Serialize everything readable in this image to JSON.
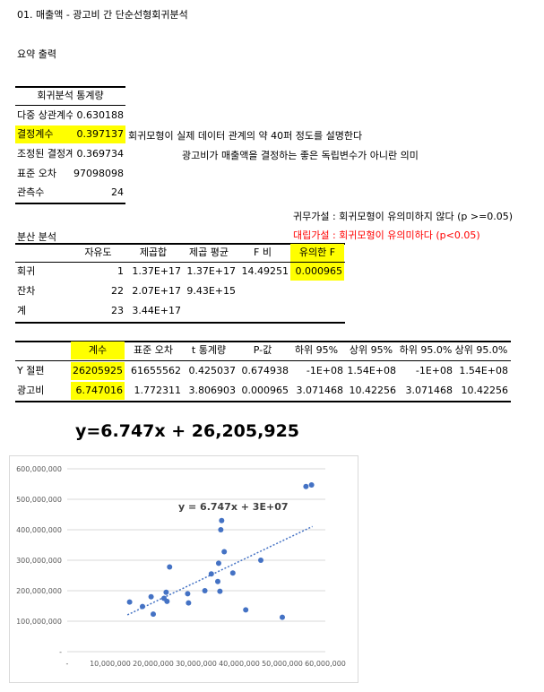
{
  "title": "01. 매출액 - 광고비 간 단순선형회귀분석",
  "summary_output": "요약 출력",
  "regression_stats": {
    "header": "회귀분석 통계량",
    "rows": [
      {
        "label": "다중 상관계수",
        "value": "0.630188"
      },
      {
        "label": "결정계수",
        "value": "0.397137"
      },
      {
        "label": "조정된 결정계수",
        "value": "0.369734"
      },
      {
        "label": "표준 오차",
        "value": "97098098"
      },
      {
        "label": "관측수",
        "value": "24"
      }
    ],
    "note_r2": "회귀모형이 실제 데이터 관계의 약 40퍼 정도를 설명한다",
    "note_adj": "광고비가 매출액을 결정하는 좋은 독립변수가 아니란 의미"
  },
  "hypotheses": {
    "null": "귀무가설 : 회귀모형이 유의미하지 않다 (p >=0.05)",
    "alt": "대립가설 : 회귀모형이 유의미하다 (p<0.05)"
  },
  "anova": {
    "title": "분산 분석",
    "headers": [
      "자유도",
      "제곱합",
      "제곱 평균",
      "F 비",
      "유의한 F"
    ],
    "rows": [
      {
        "label": "회귀",
        "df": "1",
        "ss": "1.37E+17",
        "ms": "1.37E+17",
        "f": "14.49251",
        "sigf": "0.000965"
      },
      {
        "label": "잔차",
        "df": "22",
        "ss": "2.07E+17",
        "ms": "9.43E+15",
        "f": "",
        "sigf": ""
      },
      {
        "label": "계",
        "df": "23",
        "ss": "3.44E+17",
        "ms": "",
        "f": "",
        "sigf": ""
      }
    ]
  },
  "coefficients": {
    "headers": [
      "계수",
      "표준 오차",
      "t 통계량",
      "P-값",
      "하위 95%",
      "상위 95%",
      "하위 95.0%",
      "상위 95.0%"
    ],
    "rows": [
      {
        "label": "Y 절편",
        "values": [
          "26205925",
          "61655562",
          "0.425037",
          "0.674938",
          "-1E+08",
          "1.54E+08",
          "-1E+08",
          "1.54E+08"
        ]
      },
      {
        "label": "광고비",
        "values": [
          "6.747016",
          "1.772311",
          "3.806903",
          "0.000965",
          "3.071468",
          "10.42256",
          "3.071468",
          "10.42256"
        ]
      }
    ]
  },
  "formula": "y=6.747x  +  26,205,925",
  "colors": {
    "highlight": "#ffff00",
    "accent_red": "#ff0000",
    "point": "#4472c4",
    "grid": "#d9d9d9"
  },
  "chart_data": {
    "type": "scatter",
    "title": "",
    "xlabel": "",
    "ylabel": "",
    "xlim": [
      0,
      60000000
    ],
    "ylim": [
      0,
      600000000
    ],
    "x_ticks": [
      "-",
      "10,000,000",
      "20,000,000",
      "30,000,000",
      "40,000,000",
      "50,000,000",
      "60,000,000"
    ],
    "y_ticks": [
      "-",
      "100,000,000",
      "200,000,000",
      "300,000,000",
      "400,000,000",
      "500,000,000",
      "600,000,000"
    ],
    "grid": true,
    "legend": "none",
    "trendline_label": "y = 6.747x + 3E+07",
    "trendline": {
      "slope": 6.747,
      "intercept": 26205925,
      "x_range": [
        14000000,
        57000000
      ]
    },
    "points": [
      {
        "x": 14500000,
        "y": 163000000
      },
      {
        "x": 17500000,
        "y": 148000000
      },
      {
        "x": 19500000,
        "y": 180000000
      },
      {
        "x": 20000000,
        "y": 123000000
      },
      {
        "x": 22500000,
        "y": 175000000
      },
      {
        "x": 23000000,
        "y": 195000000
      },
      {
        "x": 23200000,
        "y": 165000000
      },
      {
        "x": 23800000,
        "y": 278000000
      },
      {
        "x": 28000000,
        "y": 190000000
      },
      {
        "x": 28200000,
        "y": 160000000
      },
      {
        "x": 32000000,
        "y": 200000000
      },
      {
        "x": 33500000,
        "y": 255000000
      },
      {
        "x": 35000000,
        "y": 230000000
      },
      {
        "x": 35200000,
        "y": 290000000
      },
      {
        "x": 35500000,
        "y": 198000000
      },
      {
        "x": 35700000,
        "y": 400000000
      },
      {
        "x": 35900000,
        "y": 430000000
      },
      {
        "x": 36500000,
        "y": 328000000
      },
      {
        "x": 38500000,
        "y": 258000000
      },
      {
        "x": 41500000,
        "y": 137000000
      },
      {
        "x": 45000000,
        "y": 300000000
      },
      {
        "x": 50000000,
        "y": 113000000
      },
      {
        "x": 55500000,
        "y": 542000000
      },
      {
        "x": 56800000,
        "y": 547000000
      }
    ]
  }
}
